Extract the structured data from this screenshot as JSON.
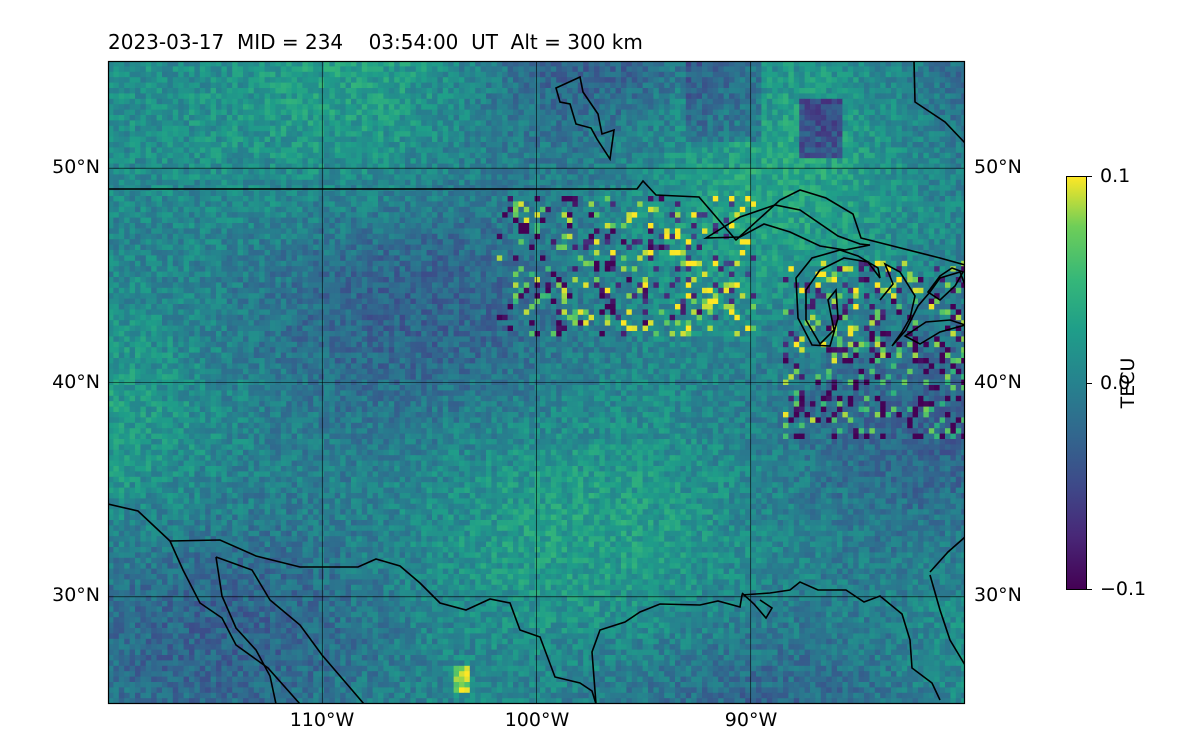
{
  "title": "2023-03-17  MID = 234    03:54:00  UT  Alt = 300 km",
  "map": {
    "lon_range": [
      -120,
      -80
    ],
    "lat_range": [
      25,
      55
    ],
    "lat_ticks": [
      {
        "value": 50,
        "label": "50°N"
      },
      {
        "value": 40,
        "label": "40°N"
      },
      {
        "value": 30,
        "label": "30°N"
      }
    ],
    "lon_ticks": [
      {
        "value": -110,
        "label": "110°W"
      },
      {
        "value": -100,
        "label": "100°W"
      },
      {
        "value": -90,
        "label": "90°W"
      }
    ],
    "colormap": "viridis",
    "coastline_color": "#000000",
    "field_range": [
      -0.1,
      0.1
    ]
  },
  "colorbar": {
    "label": "TECU",
    "ticks": [
      {
        "value": 0.1,
        "label": "0.1"
      },
      {
        "value": 0.0,
        "label": "0.0"
      },
      {
        "value": -0.1,
        "label": "−0.1"
      }
    ]
  }
}
